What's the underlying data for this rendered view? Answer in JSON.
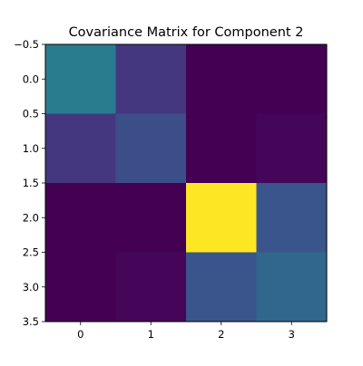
{
  "chart_data": {
    "type": "heatmap",
    "title": "Covariance Matrix for Component 2",
    "xlabel": "",
    "ylabel": "",
    "x_ticks": [
      "0",
      "1",
      "2",
      "3"
    ],
    "y_ticks": [
      "−0.5",
      "0.0",
      "0.5",
      "1.0",
      "1.5",
      "2.0",
      "2.5",
      "3.0",
      "3.5"
    ],
    "xlim": [
      -0.5,
      3.5
    ],
    "ylim": [
      3.5,
      -0.5
    ],
    "colormap": "viridis",
    "vmin": 0.0,
    "vmax": 1.0,
    "matrix": [
      [
        0.52,
        0.2,
        0.0,
        0.0
      ],
      [
        0.2,
        0.3,
        0.0,
        0.02
      ],
      [
        0.0,
        0.0,
        1.0,
        0.33
      ],
      [
        0.0,
        0.02,
        0.33,
        0.42
      ]
    ],
    "grid": false,
    "legend": "none"
  }
}
